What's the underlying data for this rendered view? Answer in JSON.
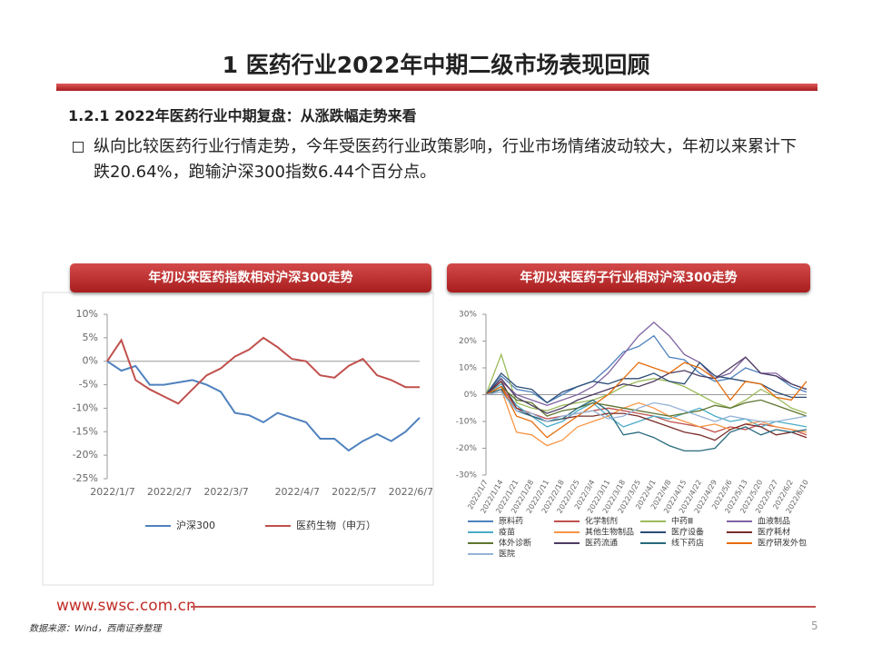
{
  "title": "1 医药行业2022年中期二级市场表现回顾",
  "section": "1.2.1 2022年医药行业中期复盘：从涨跌幅走势来看",
  "bullet": "纵向比较医药行业行情走势，今年受医药行业政策影响，行业市场情绪波动较大，年初以来累计下跌20.64%，跑输沪深300指数6.44个百分点。",
  "chart_data": [
    {
      "type": "line",
      "title": "年初以来医药指数相对沪深300走势",
      "categories": [
        "2022/1/7",
        null,
        null,
        null,
        "2022/2/7",
        null,
        null,
        null,
        "2022/3/7",
        null,
        null,
        null,
        null,
        "2022/4/7",
        null,
        null,
        null,
        "2022/5/7",
        null,
        null,
        null,
        "2022/6/7",
        null
      ],
      "ylim": [
        -25,
        10
      ],
      "yticks": [
        {
          "value": 10,
          "label": "10%"
        },
        {
          "value": 5,
          "label": "5%"
        },
        {
          "value": 0,
          "label": "0%"
        },
        {
          "value": -5,
          "label": "-5%"
        },
        {
          "value": -10,
          "label": "-10%"
        },
        {
          "value": -15,
          "label": "-15%"
        },
        {
          "value": -20,
          "label": "-20%"
        },
        {
          "value": -25,
          "label": "-25%"
        }
      ],
      "series": [
        {
          "name": "沪深300",
          "color": "#4f81bd",
          "values": [
            0,
            -2,
            -1,
            -5,
            -5,
            -4.5,
            -4,
            -5,
            -6.5,
            -11,
            -11.5,
            -13,
            -11,
            -12,
            -13,
            -16.5,
            -16.5,
            -19,
            -17,
            -15.5,
            -17,
            -15,
            -12
          ]
        },
        {
          "name": "医药生物（申万）",
          "color": "#c0504d",
          "values": [
            0,
            4.5,
            -4,
            -6,
            -7.5,
            -9,
            -6,
            -3,
            -1.5,
            1,
            2.5,
            5,
            3,
            0.5,
            0,
            -3,
            -3.5,
            -1,
            0.5,
            -3,
            -4,
            -5.5,
            -5.5
          ]
        }
      ]
    },
    {
      "type": "line",
      "title": "年初以来医药子行业相对沪深300走势",
      "categories": [
        "2022/1/7",
        "2022/1/14",
        "2022/1/21",
        "2022/1/28",
        "2022/2/11",
        "2022/2/18",
        "2022/2/25",
        "2022/3/4",
        "2022/3/11",
        "2022/3/18",
        "2022/3/25",
        "2022/4/1",
        "2022/4/8",
        "2022/4/15",
        "2022/4/22",
        "2022/4/29",
        "2022/5/6",
        "2022/5/13",
        "2022/5/20",
        "2022/5/27",
        "2022/6/2",
        "2022/6/10"
      ],
      "ylim": [
        -30,
        30
      ],
      "yticks": [
        {
          "value": 30,
          "label": "30%"
        },
        {
          "value": 20,
          "label": "20%"
        },
        {
          "value": 10,
          "label": "10%"
        },
        {
          "value": 0,
          "label": "0%"
        },
        {
          "value": -10,
          "label": "-10%"
        },
        {
          "value": -20,
          "label": "-20%"
        },
        {
          "value": -30,
          "label": "-30%"
        }
      ],
      "series": [
        {
          "name": "原料药",
          "color": "#4f81bd",
          "values": [
            0,
            7,
            2,
            1,
            -3,
            0,
            3,
            5,
            10,
            16,
            18,
            22,
            14,
            13,
            8,
            5,
            6,
            10,
            8,
            7,
            3,
            1
          ]
        },
        {
          "name": "化学制剂",
          "color": "#c0504d",
          "values": [
            0,
            3,
            -5,
            -7,
            -9,
            -8,
            -7,
            -6,
            -5,
            -6,
            -7,
            -8,
            -10,
            -11,
            -12,
            -14,
            -12,
            -13,
            -11,
            -12,
            -13,
            -15
          ]
        },
        {
          "name": "中药Ⅲ",
          "color": "#9bbb59",
          "values": [
            0,
            15,
            -3,
            -5,
            -6,
            -4,
            -3,
            -2,
            0,
            3,
            5,
            6,
            5,
            3,
            0,
            -3,
            -5,
            -2,
            2,
            -1,
            -5,
            -7
          ]
        },
        {
          "name": "血液制品",
          "color": "#8064a2",
          "values": [
            0,
            5,
            0,
            -2,
            -4,
            -2,
            0,
            3,
            8,
            15,
            22,
            27,
            22,
            15,
            12,
            6,
            8,
            14,
            8,
            8,
            4,
            2
          ]
        },
        {
          "name": "疫苗",
          "color": "#4bacc6",
          "values": [
            0,
            4,
            -4,
            -8,
            -12,
            -10,
            -6,
            -3,
            -8,
            -12,
            -10,
            -8,
            -9,
            -7,
            -5,
            -8,
            -10,
            -9,
            -12,
            -10,
            -11,
            -12
          ]
        },
        {
          "name": "其他生物制品",
          "color": "#f79646",
          "values": [
            0,
            2,
            -14,
            -15,
            -19,
            -17,
            -12,
            -10,
            -8,
            -5,
            -3,
            -5,
            -8,
            -10,
            -12,
            -11,
            -13,
            -11,
            -10,
            -12,
            -13,
            -14
          ]
        },
        {
          "name": "医疗设备",
          "color": "#2c4d75",
          "values": [
            0,
            8,
            3,
            2,
            -3,
            1,
            3,
            5,
            4,
            6,
            6,
            8,
            5,
            4,
            12,
            7,
            6,
            5,
            4,
            1,
            -1,
            -1
          ]
        },
        {
          "name": "医疗耗材",
          "color": "#772c2a",
          "values": [
            0,
            5,
            -5,
            -8,
            -10,
            -9,
            -8,
            -8,
            -7,
            -7,
            -8,
            -10,
            -12,
            -14,
            -15,
            -17,
            -13,
            -11,
            -12,
            -15,
            -14,
            -16
          ]
        },
        {
          "name": "体外诊断",
          "color": "#5f7530",
          "values": [
            0,
            3,
            -2,
            -3,
            -8,
            -6,
            -5,
            -3,
            -4,
            -5,
            -6,
            -7,
            -8,
            -7,
            -6,
            -4,
            -5,
            -3,
            -2,
            -4,
            -6,
            -8
          ]
        },
        {
          "name": "医药流通",
          "color": "#4d3b62",
          "values": [
            0,
            6,
            -1,
            -4,
            -7,
            -5,
            -2,
            0,
            2,
            4,
            3,
            5,
            8,
            9,
            7,
            6,
            10,
            14,
            8,
            7,
            4,
            2
          ]
        },
        {
          "name": "线下药店",
          "color": "#276a7c",
          "values": [
            0,
            2,
            -6,
            -8,
            -10,
            -9,
            -5,
            -2,
            -6,
            -15,
            -14,
            -16,
            -19,
            -21,
            -21,
            -20,
            -14,
            -12,
            -15,
            -13,
            -14,
            -13
          ]
        },
        {
          "name": "医疗研发外包",
          "color": "#e46c0a",
          "values": [
            0,
            3,
            -8,
            -10,
            -16,
            -12,
            -8,
            -4,
            0,
            6,
            12,
            10,
            8,
            12,
            10,
            6,
            -2,
            5,
            4,
            -1,
            -2,
            5
          ]
        },
        {
          "name": "医院",
          "color": "#95b3d7",
          "values": [
            0,
            1,
            -6,
            -7,
            -10,
            -8,
            -7,
            -6,
            -9,
            -8,
            -5,
            -3,
            -4,
            -6,
            -8,
            -10,
            -8,
            -9,
            -10,
            -10,
            -9,
            -8
          ]
        }
      ]
    }
  ],
  "website": "www.swsc.com.cn",
  "source": "数据来源：Wind，西南证券整理",
  "page": "5"
}
